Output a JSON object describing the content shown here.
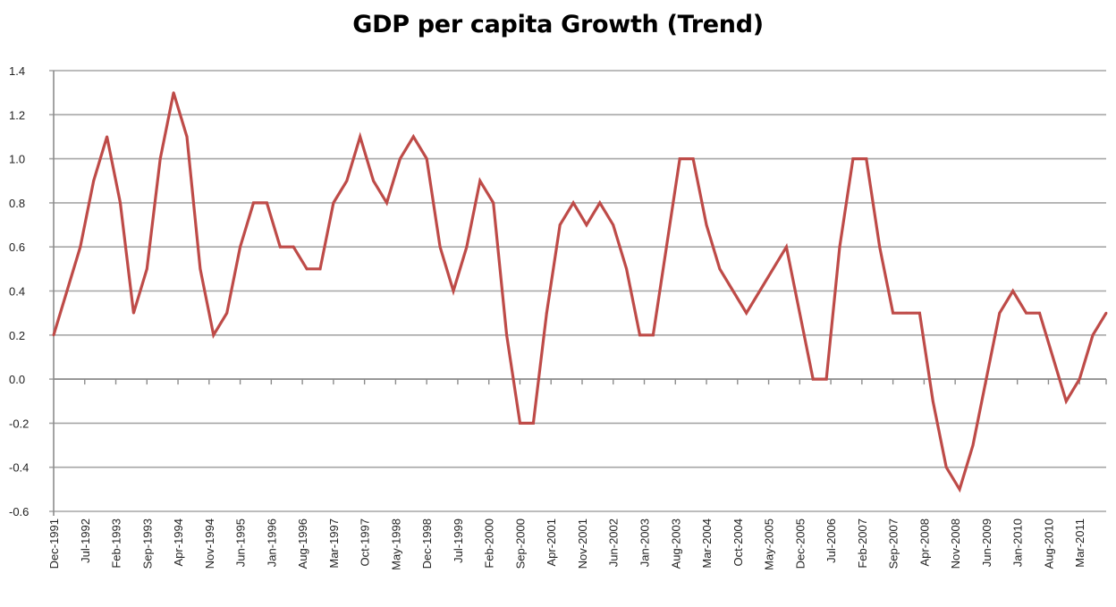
{
  "chart_data": {
    "type": "line",
    "title": "GDP per capita Growth (Trend)",
    "xlabel": "",
    "ylabel": "",
    "ylim": [
      -0.6,
      1.4
    ],
    "y_ticks": [
      "1.4",
      "1.2",
      "1.0",
      "0.8",
      "0.6",
      "0.4",
      "0.2",
      "0.0",
      "-0.2",
      "-0.4",
      "-0.6"
    ],
    "grid": true,
    "legend": "none",
    "line_color": "#be4b48",
    "x_tick_labels": [
      "Dec-1991",
      "Jul-1992",
      "Feb-1993",
      "Sep-1993",
      "Apr-1994",
      "Nov-1994",
      "Jun-1995",
      "Jan-1996",
      "Aug-1996",
      "Mar-1997",
      "Oct-1997",
      "May-1998",
      "Dec-1998",
      "Jul-1999",
      "Feb-2000",
      "Sep-2000",
      "Apr-2001",
      "Nov-2001",
      "Jun-2002",
      "Jan-2003",
      "Aug-2003",
      "Mar-2004",
      "Oct-2004",
      "May-2005",
      "Dec-2005",
      "Jul-2006",
      "Feb-2007",
      "Sep-2007",
      "Apr-2008",
      "Nov-2008",
      "Jun-2009",
      "Jan-2010",
      "Aug-2010",
      "Mar-2011"
    ],
    "x": [
      "Dec-1991",
      "Mar-1992",
      "Jun-1992",
      "Sep-1992",
      "Dec-1992",
      "Mar-1993",
      "Jun-1993",
      "Sep-1993",
      "Dec-1993",
      "Mar-1994",
      "Jun-1994",
      "Sep-1994",
      "Dec-1994",
      "Mar-1995",
      "Jun-1995",
      "Sep-1995",
      "Dec-1995",
      "Mar-1996",
      "Jun-1996",
      "Sep-1996",
      "Dec-1996",
      "Mar-1997",
      "Jun-1997",
      "Sep-1997",
      "Dec-1997",
      "Mar-1998",
      "Jun-1998",
      "Sep-1998",
      "Dec-1998",
      "Mar-1999",
      "Jun-1999",
      "Sep-1999",
      "Dec-1999",
      "Mar-2000",
      "Jun-2000",
      "Sep-2000",
      "Dec-2000",
      "Mar-2001",
      "Jun-2001",
      "Sep-2001",
      "Dec-2001",
      "Mar-2002",
      "Jun-2002",
      "Sep-2002",
      "Dec-2002",
      "Mar-2003",
      "Jun-2003",
      "Sep-2003",
      "Dec-2003",
      "Mar-2004",
      "Jun-2004",
      "Sep-2004",
      "Dec-2004",
      "Mar-2005",
      "Jun-2005",
      "Sep-2005",
      "Dec-2005",
      "Mar-2006",
      "Jun-2006",
      "Sep-2006",
      "Dec-2006",
      "Mar-2007",
      "Jun-2007",
      "Sep-2007",
      "Dec-2007",
      "Mar-2008",
      "Jun-2008",
      "Sep-2008",
      "Dec-2008",
      "Mar-2009",
      "Jun-2009",
      "Sep-2009",
      "Dec-2009",
      "Mar-2010",
      "Jun-2010",
      "Sep-2010",
      "Dec-2010",
      "Mar-2011",
      "Jun-2011",
      "Sep-2011"
    ],
    "values": [
      0.2,
      0.4,
      0.6,
      0.9,
      1.1,
      0.8,
      0.3,
      0.5,
      1.0,
      1.3,
      1.1,
      0.5,
      0.2,
      0.3,
      0.6,
      0.8,
      0.8,
      0.6,
      0.6,
      0.5,
      0.5,
      0.8,
      0.9,
      1.1,
      0.9,
      0.8,
      1.0,
      1.1,
      1.0,
      0.6,
      0.4,
      0.6,
      0.9,
      0.8,
      0.2,
      -0.2,
      -0.2,
      0.3,
      0.7,
      0.8,
      0.7,
      0.8,
      0.7,
      0.5,
      0.2,
      0.2,
      0.6,
      1.0,
      1.0,
      0.7,
      0.5,
      0.4,
      0.3,
      0.4,
      0.5,
      0.6,
      0.3,
      0.0,
      0.0,
      0.6,
      1.0,
      1.0,
      0.6,
      0.3,
      0.3,
      0.3,
      -0.1,
      -0.4,
      -0.5,
      -0.3,
      0.0,
      0.3,
      0.4,
      0.3,
      0.3,
      0.1,
      -0.1,
      0.0,
      0.2,
      0.3
    ]
  }
}
